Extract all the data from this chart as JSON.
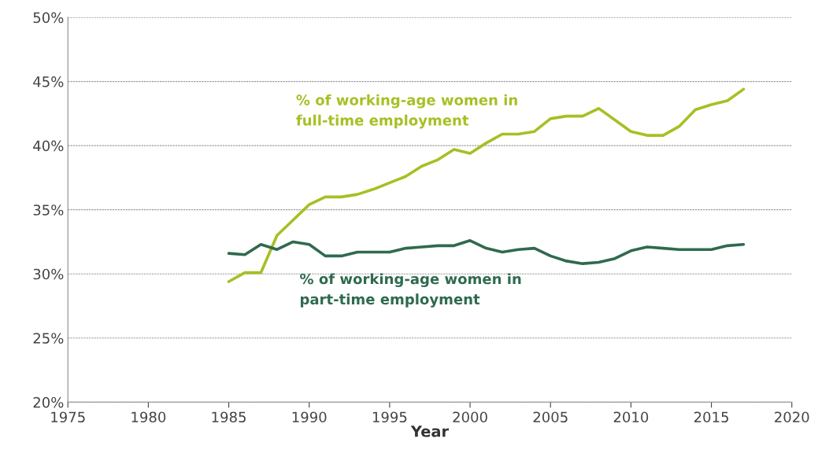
{
  "chart_data": {
    "type": "line",
    "xlabel": "Year",
    "x": [
      1985,
      1986,
      1987,
      1988,
      1989,
      1990,
      1991,
      1992,
      1993,
      1994,
      1995,
      1996,
      1997,
      1998,
      1999,
      2000,
      2001,
      2002,
      2003,
      2004,
      2005,
      2006,
      2007,
      2008,
      2009,
      2010,
      2011,
      2012,
      2013,
      2014,
      2015,
      2016,
      2017
    ],
    "series": [
      {
        "name": "% of working-age women in\nfull-time employment",
        "color": "#a8bf24",
        "values": [
          29.4,
          30.1,
          30.1,
          33.0,
          34.2,
          35.4,
          36.0,
          36.0,
          36.2,
          36.6,
          37.1,
          37.6,
          38.4,
          38.9,
          39.7,
          39.4,
          40.2,
          40.9,
          40.9,
          41.1,
          42.1,
          42.3,
          42.3,
          42.9,
          42.0,
          41.1,
          40.8,
          40.8,
          41.5,
          42.8,
          43.2,
          43.5,
          44.4
        ]
      },
      {
        "name": "% of working-age women in\npart-time employment",
        "color": "#2f6a4f",
        "values": [
          31.6,
          31.5,
          32.3,
          31.9,
          32.5,
          32.3,
          31.4,
          31.4,
          31.7,
          31.7,
          31.7,
          32.0,
          32.1,
          32.2,
          32.2,
          32.6,
          32.0,
          31.7,
          31.9,
          32.0,
          31.4,
          31.0,
          30.8,
          30.9,
          31.2,
          31.8,
          32.1,
          32.0,
          31.9,
          31.9,
          31.9,
          32.2,
          32.3
        ]
      }
    ],
    "xlim": [
      1975,
      2020
    ],
    "xticks": [
      1975,
      1980,
      1985,
      1990,
      1995,
      2000,
      2005,
      2010,
      2015,
      2020
    ],
    "ylim": [
      20,
      50
    ],
    "yticks": [
      {
        "value": 20,
        "label": "20%"
      },
      {
        "value": 25,
        "label": "25%"
      },
      {
        "value": 30,
        "label": "30%"
      },
      {
        "value": 35,
        "label": "35%"
      },
      {
        "value": 40,
        "label": "40%"
      },
      {
        "value": 45,
        "label": "45%"
      },
      {
        "value": 50,
        "label": "50%"
      }
    ],
    "grid": "y",
    "legend": false,
    "line_style": "solid",
    "marker": "none"
  }
}
